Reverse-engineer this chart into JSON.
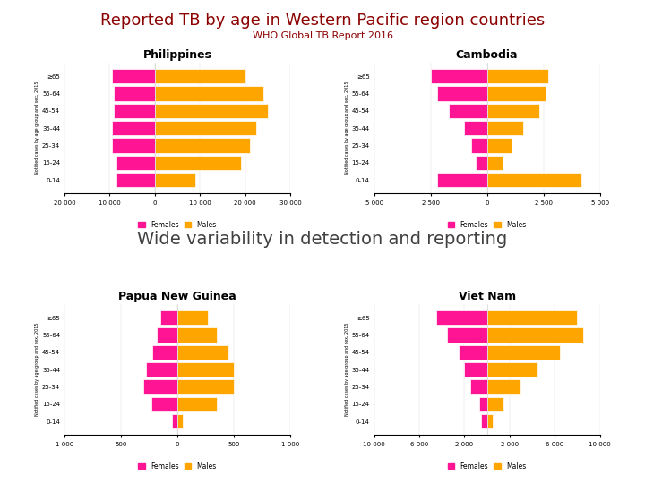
{
  "title": "Reported TB by age in Western Pacific region countries",
  "subtitle": "WHO Global TB Report 2016",
  "middle_text": "Wide variability in detection and reporting",
  "title_color": "#8B0000",
  "middle_text_color": "#404040",
  "female_color": "#FF1493",
  "male_color": "#FFA500",
  "background_color": "#FFFFFF",
  "age_groups": [
    "0-14",
    "15-24",
    "25-34",
    "35-44",
    "45-54",
    "55-64",
    "≥65"
  ],
  "philippines_females": [
    8500,
    8500,
    9500,
    9500,
    9000,
    9000,
    9500
  ],
  "philippines_males": [
    9000,
    19000,
    21000,
    22500,
    25000,
    24000,
    20000
  ],
  "philippines_xlim": [
    -20000,
    30000
  ],
  "philippines_xticks": [
    -20000,
    -10000,
    0,
    10000,
    20000,
    30000
  ],
  "philippines_xtick_labels": [
    "20 000",
    "10 000",
    "0",
    "10 000",
    "20 000",
    "30 000"
  ],
  "cambodia_females": [
    2200,
    500,
    700,
    1000,
    1700,
    2200,
    2500
  ],
  "cambodia_males": [
    4200,
    700,
    1100,
    1600,
    2300,
    2600,
    2700
  ],
  "cambodia_xlim": [
    -5000,
    5000
  ],
  "cambodia_xticks": [
    -5000,
    -2500,
    0,
    2500,
    5000
  ],
  "cambodia_xtick_labels": [
    "5 000",
    "2 500",
    "0",
    "2 500",
    "5 000"
  ],
  "png_females": [
    50,
    230,
    300,
    280,
    220,
    180,
    150
  ],
  "png_males": [
    50,
    350,
    500,
    500,
    450,
    350,
    270
  ],
  "png_xlim": [
    -1000,
    1000
  ],
  "png_xticks": [
    -1000,
    -500,
    0,
    500,
    1000
  ],
  "png_xtick_labels": [
    "1 000",
    "500",
    "0",
    "500",
    "1 000"
  ],
  "vietnam_females": [
    500,
    700,
    1500,
    2000,
    2500,
    3500,
    4500
  ],
  "vietnam_males": [
    500,
    1500,
    3000,
    4500,
    6500,
    8500,
    8000
  ],
  "vietnam_xlim": [
    -10000,
    10000
  ],
  "vietnam_xticks": [
    -10000,
    -6000,
    -2000,
    2000,
    6000,
    10000
  ],
  "vietnam_xtick_labels": [
    "10 000",
    "6 000",
    "2 000",
    "2 000",
    "6 000",
    "10 000"
  ],
  "ylabel": "Notified cases by age group and sex, 2015",
  "legend_females": "Females",
  "legend_males": "Males"
}
